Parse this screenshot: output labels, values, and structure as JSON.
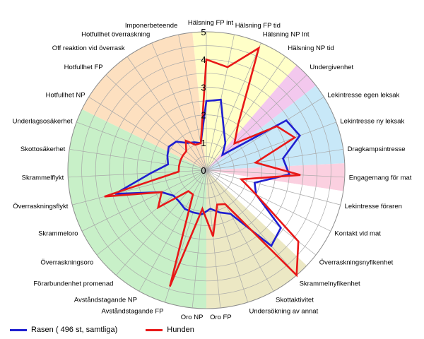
{
  "chart_data": {
    "type": "radar",
    "rmax": 5,
    "ticks": [
      0,
      1,
      2,
      3,
      4,
      5
    ],
    "axes": [
      "Hälsning FP int",
      "Hälsning FP tid",
      "Hälsning NP Int",
      "Hälsning NP tid",
      "Undergivenhet",
      "Lekintresse egen leksak",
      "Lekintresse ny leksak",
      "Dragkampsintresse",
      "Engagemang för mat",
      "Lekintresse föraren",
      "Kontakt vid mat",
      "Överraskningsnyfikenhet",
      "Skrammelnyfikenhet",
      "Skottaktivitet",
      "Undersökning av annat",
      "Oro FP",
      "Oro NP",
      "Avståndstagande FP",
      "Avståndstagande NP",
      "Förarbundenhet promenad",
      "Överraskningsoro",
      "Skrammeloro",
      "Överraskningsflykt",
      "Skrammelflykt",
      "Skottosäkerhet",
      "Underlagsosäkerhet",
      "Hotfullhet NP",
      "Hotfullhet FP",
      "Off reaktion vid överrask",
      "Hotfullhet överraskning",
      "Imponerbeteende"
    ],
    "sectors": [
      {
        "from": 0,
        "to": 3,
        "color": "#ffffc8"
      },
      {
        "from": 4,
        "to": 4,
        "color": "#f3c8ee"
      },
      {
        "from": 5,
        "to": 7,
        "color": "#c8e8f8"
      },
      {
        "from": 8,
        "to": 8,
        "color": "#fbd0e0"
      },
      {
        "from": 9,
        "to": 11,
        "color": "#ffffff"
      },
      {
        "from": 12,
        "to": 15,
        "color": "#ece8c4"
      },
      {
        "from": 16,
        "to": 25,
        "color": "#c8f0c8"
      },
      {
        "from": 26,
        "to": 30,
        "color": "#fde0c0"
      }
    ],
    "series": [
      {
        "name": "Rasen ( 496 st, samtliga)",
        "color": "#1f1fd0",
        "values": [
          2.5,
          2.6,
          1.6,
          1.2,
          0.8,
          3.4,
          3.6,
          2.8,
          3.0,
          1.8,
          2.0,
          3.4,
          3.6,
          1.8,
          1.6,
          1.4,
          1.6,
          1.6,
          1.6,
          1.5,
          1.5,
          1.8,
          3.4,
          2.0,
          1.4,
          1.5,
          1.6,
          1.5,
          1.2,
          1.1,
          1.0
        ]
      },
      {
        "name": "Hunden",
        "color": "#e81818",
        "values": [
          4.0,
          3.8,
          4.8,
          2.0,
          1.4,
          3.0,
          3.4,
          1.8,
          3.4,
          1.3,
          2.0,
          4.2,
          5.0,
          1.4,
          1.3,
          2.4,
          1.4,
          4.4,
          1.0,
          1.0,
          2.2,
          1.8,
          3.8,
          1.0,
          1.0,
          1.0,
          1.0,
          1.0,
          1.3,
          1.0,
          1.0
        ]
      }
    ]
  }
}
